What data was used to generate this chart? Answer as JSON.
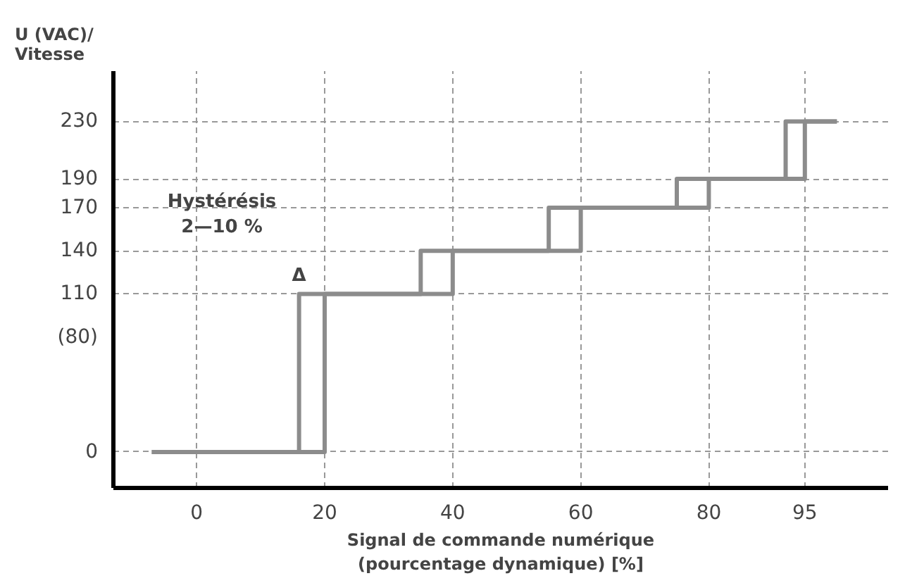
{
  "chart_data": {
    "type": "step",
    "xlabel": "Signal de commande numérique\n(pourcentage dynamique) [%]",
    "ylabel": "U (VAC)/\nVitesse",
    "series": [
      {
        "color": "#8c8c8c",
        "x": [
          -7,
          20,
          40,
          60,
          80,
          95,
          100
        ],
        "values": [
          0,
          110,
          140,
          170,
          190,
          230,
          230
        ]
      },
      {
        "color": "#8c8c8c",
        "x": [
          -7,
          16,
          35,
          55,
          75,
          92,
          100
        ],
        "values": [
          0,
          110,
          140,
          170,
          190,
          230,
          230
        ]
      }
    ],
    "xlim": [
      -13,
      108
    ],
    "ylim": [
      -25,
      265
    ],
    "xticks": [
      0,
      20,
      40,
      60,
      80,
      95
    ],
    "yticks": [
      0,
      {
        "value": 80,
        "label": "(80)"
      },
      110,
      140,
      170,
      190,
      230
    ],
    "grid": true,
    "marker": "none",
    "line_style": "solid",
    "annotations": [
      "Hystérésis\n2—10 %",
      {
        "text": "Δ",
        "x": 16,
        "y": 115
      }
    ]
  }
}
